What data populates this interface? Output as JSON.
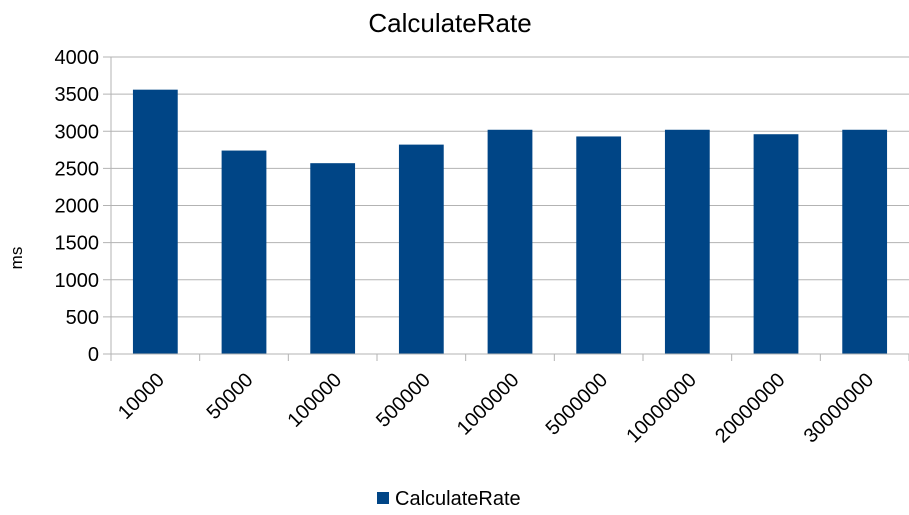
{
  "chart_data": {
    "type": "bar",
    "title": "CalculateRate",
    "ylabel": "ms",
    "xlabel": "",
    "categories": [
      "10000",
      "50000",
      "100000",
      "500000",
      "1000000",
      "5000000",
      "10000000",
      "20000000",
      "30000000"
    ],
    "series": [
      {
        "name": "CalculateRate",
        "color": "#004586",
        "values": [
          3560,
          2740,
          2570,
          2820,
          3020,
          2930,
          3020,
          2960,
          3020
        ]
      }
    ],
    "ylim": [
      0,
      4000
    ],
    "yticks": [
      0,
      500,
      1000,
      1500,
      2000,
      2500,
      3000,
      3500,
      4000
    ],
    "grid": true,
    "legend_position": "bottom"
  }
}
